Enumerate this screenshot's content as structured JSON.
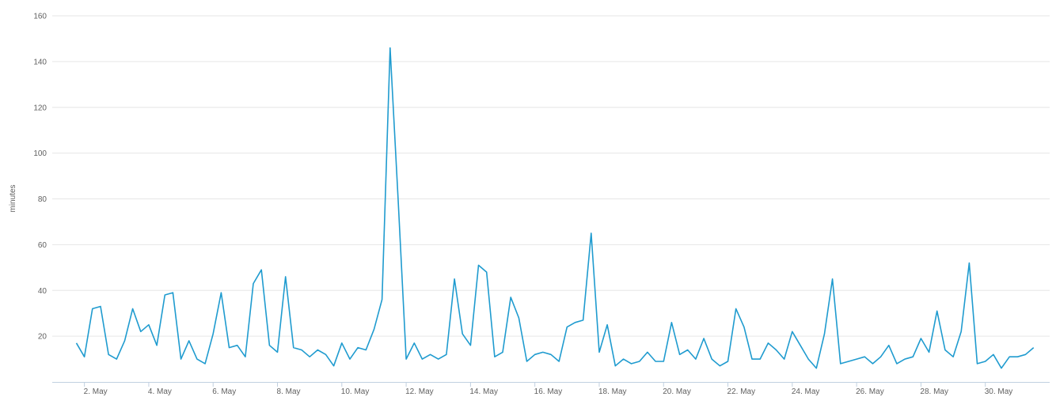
{
  "chart_data": {
    "type": "line",
    "title": "",
    "xlabel": "",
    "ylabel": "minutes",
    "ylim": [
      0,
      160
    ],
    "yticks": [
      20,
      40,
      60,
      80,
      100,
      120,
      140,
      160
    ],
    "xlim": [
      "2011-05-01",
      "2011-06-01"
    ],
    "x_tick_labels": [
      {
        "date": "2011-05-02",
        "label": "2. May"
      },
      {
        "date": "2011-05-04",
        "label": "4. May"
      },
      {
        "date": "2011-05-06",
        "label": "6. May"
      },
      {
        "date": "2011-05-08",
        "label": "8. May"
      },
      {
        "date": "2011-05-10",
        "label": "10. May"
      },
      {
        "date": "2011-05-12",
        "label": "12. May"
      },
      {
        "date": "2011-05-14",
        "label": "14. May"
      },
      {
        "date": "2011-05-16",
        "label": "16. May"
      },
      {
        "date": "2011-05-18",
        "label": "18. May"
      },
      {
        "date": "2011-05-20",
        "label": "20. May"
      },
      {
        "date": "2011-05-22",
        "label": "22. May"
      },
      {
        "date": "2011-05-24",
        "label": "24. May"
      },
      {
        "date": "2011-05-26",
        "label": "26. May"
      },
      {
        "date": "2011-05-28",
        "label": "28. May"
      },
      {
        "date": "2011-05-30",
        "label": "30. May"
      }
    ],
    "grid": true,
    "series": [
      {
        "color": "#1f9bcf",
        "points": [
          [
            "2011-05-01 18:00",
            17
          ],
          [
            "2011-05-02 00:00",
            11
          ],
          [
            "2011-05-02 06:00",
            32
          ],
          [
            "2011-05-02 12:00",
            33
          ],
          [
            "2011-05-02 18:00",
            12
          ],
          [
            "2011-05-03 00:00",
            10
          ],
          [
            "2011-05-03 06:00",
            18
          ],
          [
            "2011-05-03 12:00",
            32
          ],
          [
            "2011-05-03 18:00",
            22
          ],
          [
            "2011-05-04 00:00",
            25
          ],
          [
            "2011-05-04 06:00",
            16
          ],
          [
            "2011-05-04 12:00",
            38
          ],
          [
            "2011-05-04 18:00",
            39
          ],
          [
            "2011-05-05 00:00",
            10
          ],
          [
            "2011-05-05 06:00",
            18
          ],
          [
            "2011-05-05 12:00",
            10
          ],
          [
            "2011-05-05 18:00",
            8
          ],
          [
            "2011-05-06 00:00",
            21
          ],
          [
            "2011-05-06 06:00",
            39
          ],
          [
            "2011-05-06 12:00",
            15
          ],
          [
            "2011-05-06 18:00",
            16
          ],
          [
            "2011-05-07 00:00",
            11
          ],
          [
            "2011-05-07 06:00",
            43
          ],
          [
            "2011-05-07 12:00",
            49
          ],
          [
            "2011-05-07 18:00",
            16
          ],
          [
            "2011-05-08 00:00",
            13
          ],
          [
            "2011-05-08 06:00",
            46
          ],
          [
            "2011-05-08 12:00",
            15
          ],
          [
            "2011-05-08 18:00",
            14
          ],
          [
            "2011-05-09 00:00",
            11
          ],
          [
            "2011-05-09 06:00",
            14
          ],
          [
            "2011-05-09 12:00",
            12
          ],
          [
            "2011-05-09 18:00",
            7
          ],
          [
            "2011-05-10 00:00",
            17
          ],
          [
            "2011-05-10 06:00",
            10
          ],
          [
            "2011-05-10 12:00",
            15
          ],
          [
            "2011-05-10 18:00",
            14
          ],
          [
            "2011-05-11 00:00",
            23
          ],
          [
            "2011-05-11 06:00",
            36
          ],
          [
            "2011-05-11 12:00",
            146
          ],
          [
            "2011-05-11 18:00",
            80
          ],
          [
            "2011-05-12 00:00",
            10
          ],
          [
            "2011-05-12 06:00",
            17
          ],
          [
            "2011-05-12 12:00",
            10
          ],
          [
            "2011-05-12 18:00",
            12
          ],
          [
            "2011-05-13 00:00",
            10
          ],
          [
            "2011-05-13 06:00",
            12
          ],
          [
            "2011-05-13 12:00",
            45
          ],
          [
            "2011-05-13 18:00",
            21
          ],
          [
            "2011-05-14 00:00",
            16
          ],
          [
            "2011-05-14 06:00",
            51
          ],
          [
            "2011-05-14 12:00",
            48
          ],
          [
            "2011-05-14 18:00",
            11
          ],
          [
            "2011-05-15 00:00",
            13
          ],
          [
            "2011-05-15 06:00",
            37
          ],
          [
            "2011-05-15 12:00",
            28
          ],
          [
            "2011-05-15 18:00",
            9
          ],
          [
            "2011-05-16 00:00",
            12
          ],
          [
            "2011-05-16 06:00",
            13
          ],
          [
            "2011-05-16 12:00",
            12
          ],
          [
            "2011-05-16 18:00",
            9
          ],
          [
            "2011-05-17 00:00",
            24
          ],
          [
            "2011-05-17 06:00",
            26
          ],
          [
            "2011-05-17 12:00",
            27
          ],
          [
            "2011-05-17 18:00",
            65
          ],
          [
            "2011-05-18 00:00",
            13
          ],
          [
            "2011-05-18 06:00",
            25
          ],
          [
            "2011-05-18 12:00",
            7
          ],
          [
            "2011-05-18 18:00",
            10
          ],
          [
            "2011-05-19 00:00",
            8
          ],
          [
            "2011-05-19 06:00",
            9
          ],
          [
            "2011-05-19 12:00",
            13
          ],
          [
            "2011-05-19 18:00",
            9
          ],
          [
            "2011-05-20 00:00",
            9
          ],
          [
            "2011-05-20 06:00",
            26
          ],
          [
            "2011-05-20 12:00",
            12
          ],
          [
            "2011-05-20 18:00",
            14
          ],
          [
            "2011-05-21 00:00",
            10
          ],
          [
            "2011-05-21 06:00",
            19
          ],
          [
            "2011-05-21 12:00",
            10
          ],
          [
            "2011-05-21 18:00",
            7
          ],
          [
            "2011-05-22 00:00",
            9
          ],
          [
            "2011-05-22 06:00",
            32
          ],
          [
            "2011-05-22 12:00",
            24
          ],
          [
            "2011-05-22 18:00",
            10
          ],
          [
            "2011-05-23 00:00",
            10
          ],
          [
            "2011-05-23 06:00",
            17
          ],
          [
            "2011-05-23 12:00",
            14
          ],
          [
            "2011-05-23 18:00",
            10
          ],
          [
            "2011-05-24 00:00",
            22
          ],
          [
            "2011-05-24 06:00",
            16
          ],
          [
            "2011-05-24 12:00",
            10
          ],
          [
            "2011-05-24 18:00",
            6
          ],
          [
            "2011-05-25 00:00",
            21
          ],
          [
            "2011-05-25 06:00",
            45
          ],
          [
            "2011-05-25 12:00",
            8
          ],
          [
            "2011-05-25 18:00",
            9
          ],
          [
            "2011-05-26 00:00",
            10
          ],
          [
            "2011-05-26 06:00",
            11
          ],
          [
            "2011-05-26 12:00",
            8
          ],
          [
            "2011-05-26 18:00",
            11
          ],
          [
            "2011-05-27 00:00",
            16
          ],
          [
            "2011-05-27 06:00",
            8
          ],
          [
            "2011-05-27 12:00",
            10
          ],
          [
            "2011-05-27 18:00",
            11
          ],
          [
            "2011-05-28 00:00",
            19
          ],
          [
            "2011-05-28 06:00",
            13
          ],
          [
            "2011-05-28 12:00",
            31
          ],
          [
            "2011-05-28 18:00",
            14
          ],
          [
            "2011-05-29 00:00",
            11
          ],
          [
            "2011-05-29 06:00",
            22
          ],
          [
            "2011-05-29 12:00",
            52
          ],
          [
            "2011-05-29 18:00",
            8
          ],
          [
            "2011-05-30 00:00",
            9
          ],
          [
            "2011-05-30 06:00",
            12
          ],
          [
            "2011-05-30 12:00",
            6
          ],
          [
            "2011-05-30 18:00",
            11
          ],
          [
            "2011-05-31 00:00",
            11
          ],
          [
            "2011-05-31 06:00",
            12
          ],
          [
            "2011-05-31 12:00",
            15
          ]
        ]
      }
    ]
  }
}
